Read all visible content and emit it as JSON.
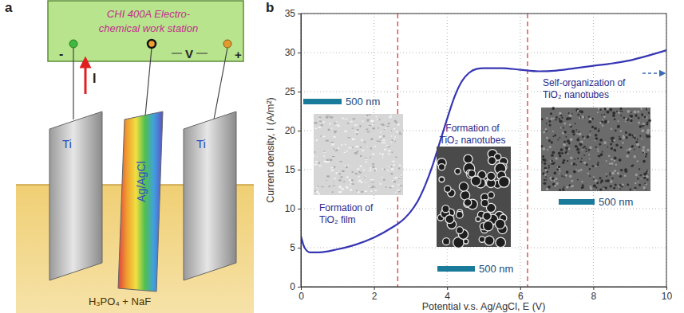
{
  "diagram": {
    "panel_label": "a",
    "workstation": [
      "CHI 400A Electro-",
      "chemical work station"
    ],
    "terminal_minus": "-",
    "terminal_plus": "+",
    "current": "I",
    "voltage": "V",
    "electrodes": [
      "Ti",
      "Ag/AgCl",
      "Ti"
    ],
    "electrolyte": "H₃PO₄ + NaF"
  },
  "chart_data": {
    "type": "line",
    "panel_label": "b",
    "x_label": "Potential v.s. Ag/AgCl, E (V)",
    "y_label": "Current density, I (A/m²)",
    "x": [
      0,
      0.1,
      0.25,
      0.5,
      1,
      1.5,
      2,
      2.5,
      2.8,
      3,
      3.2,
      3.4,
      3.6,
      3.8,
      4,
      4.2,
      4.4,
      4.6,
      4.8,
      5,
      5.5,
      6,
      6.5,
      7,
      7.5,
      8,
      8.5,
      9,
      9.5,
      10
    ],
    "values": [
      6.5,
      5.0,
      4.4,
      4.4,
      4.8,
      5.4,
      6.3,
      7.6,
      8.6,
      9.6,
      11,
      13,
      15.5,
      18.5,
      21.5,
      24.3,
      26.3,
      27.4,
      27.9,
      28,
      28,
      27.8,
      27.6,
      27.7,
      28,
      28.3,
      28.6,
      29,
      29.6,
      30.3
    ],
    "color": "#3636b4",
    "xlim": [
      0,
      10
    ],
    "xticks": [
      0,
      2,
      4,
      6,
      8,
      10
    ],
    "ylim": [
      0,
      35
    ],
    "yticks": [
      0,
      5,
      10,
      15,
      20,
      25,
      30,
      35
    ],
    "grid": true,
    "vlines": [
      2.65,
      6.2
    ],
    "annotations": [
      {
        "text": [
          "Formation of",
          "TiO₂ film"
        ],
        "scale_bar": "500 nm"
      },
      {
        "text": [
          "Formation of",
          "TiO₂ nanotubes"
        ],
        "scale_bar": "500 nm"
      },
      {
        "text": [
          "Self-organization of",
          "TiO₂ nanotubes"
        ],
        "scale_bar": "500 nm"
      }
    ]
  }
}
